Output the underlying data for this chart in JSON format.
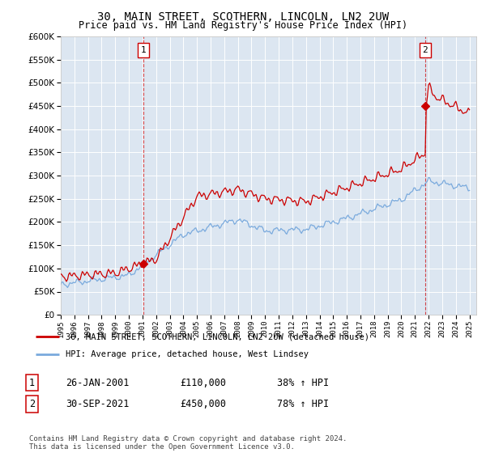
{
  "title": "30, MAIN STREET, SCOTHERN, LINCOLN, LN2 2UW",
  "subtitle": "Price paid vs. HM Land Registry's House Price Index (HPI)",
  "plot_bg_color": "#dce6f1",
  "red_line_color": "#cc0000",
  "blue_line_color": "#7aaadd",
  "ylim": [
    0,
    600000
  ],
  "yticks": [
    0,
    50000,
    100000,
    150000,
    200000,
    250000,
    300000,
    350000,
    400000,
    450000,
    500000,
    550000,
    600000
  ],
  "sale1_year": 2001.07,
  "sale1_price": 110000,
  "sale1_label": "1",
  "sale2_year": 2021.75,
  "sale2_price": 450000,
  "sale2_label": "2",
  "legend_line1": "30, MAIN STREET, SCOTHERN, LINCOLN, LN2 2UW (detached house)",
  "legend_line2": "HPI: Average price, detached house, West Lindsey",
  "note1_label": "1",
  "note1_date": "26-JAN-2001",
  "note1_price": "£110,000",
  "note1_hpi": "38% ↑ HPI",
  "note2_label": "2",
  "note2_date": "30-SEP-2021",
  "note2_price": "£450,000",
  "note2_hpi": "78% ↑ HPI",
  "footer": "Contains HM Land Registry data © Crown copyright and database right 2024.\nThis data is licensed under the Open Government Licence v3.0."
}
